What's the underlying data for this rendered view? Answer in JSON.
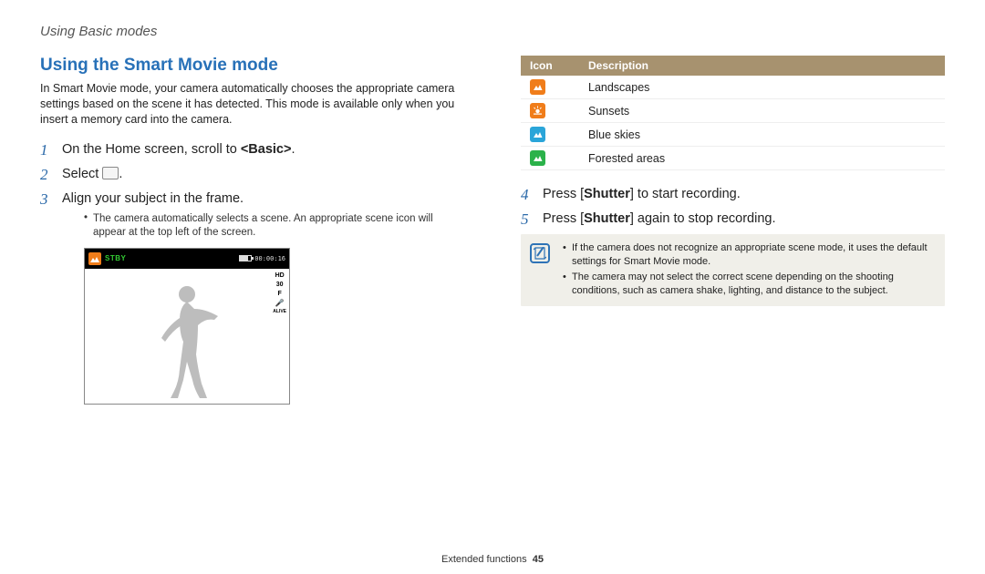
{
  "breadcrumb": "Using Basic modes",
  "title": "Using the Smart Movie mode",
  "lead": "In Smart Movie mode, your camera automatically chooses the appropriate camera settings based on the scene it has detected. This mode is available only when you insert a memory card into the camera.",
  "steps_left": {
    "s1_pre": "On the Home screen, scroll to ",
    "s1_bold": "<Basic>",
    "s1_post": ".",
    "s2_pre": "Select ",
    "s2_post": ".",
    "s3": "Align your subject in the frame.",
    "s3_sub": "The camera automatically selects a scene. An appropriate scene icon will appear at the top left of the screen."
  },
  "screenshot": {
    "stby": "STBY",
    "timecode": "00:00:16",
    "side": {
      "hd": "HD",
      "fps": "30",
      "f": "F",
      "alive": "ALIVE"
    },
    "scene_icon_bg": "#f07d1a",
    "silhouette_fill": "#bdbdbd"
  },
  "icon_table": {
    "headers": {
      "icon": "Icon",
      "desc": "Description"
    },
    "rows": [
      {
        "bg": "#f07d1a",
        "glyph_type": "mountain",
        "glyph_fill": "#ffffff",
        "label": "Landscapes"
      },
      {
        "bg": "#f07d1a",
        "glyph_type": "sunset",
        "glyph_fill": "#ffffff",
        "label": "Sunsets"
      },
      {
        "bg": "#2aa5d9",
        "glyph_type": "mountain",
        "glyph_fill": "#ffffff",
        "label": "Blue skies"
      },
      {
        "bg": "#2bb24a",
        "glyph_type": "mountain",
        "glyph_fill": "#ffffff",
        "label": "Forested areas"
      }
    ]
  },
  "steps_right": {
    "s4_pre": "Press [",
    "s4_bold": "Shutter",
    "s4_post": "] to start recording.",
    "s5_pre": "Press [",
    "s5_bold": "Shutter",
    "s5_post": "] again to stop recording."
  },
  "note": [
    "If the camera does not recognize an appropriate scene mode, it uses the default settings for Smart Movie mode.",
    "The camera may not select the correct scene depending on the shooting conditions, such as camera shake, lighting, and distance to the subject."
  ],
  "footer": {
    "section": "Extended functions",
    "page": "45"
  },
  "colors": {
    "title": "#2871b8",
    "step_num": "#2968a8",
    "table_header_bg": "#a7926f",
    "note_bg": "#f0efe9",
    "note_border": "#2e73b6"
  }
}
